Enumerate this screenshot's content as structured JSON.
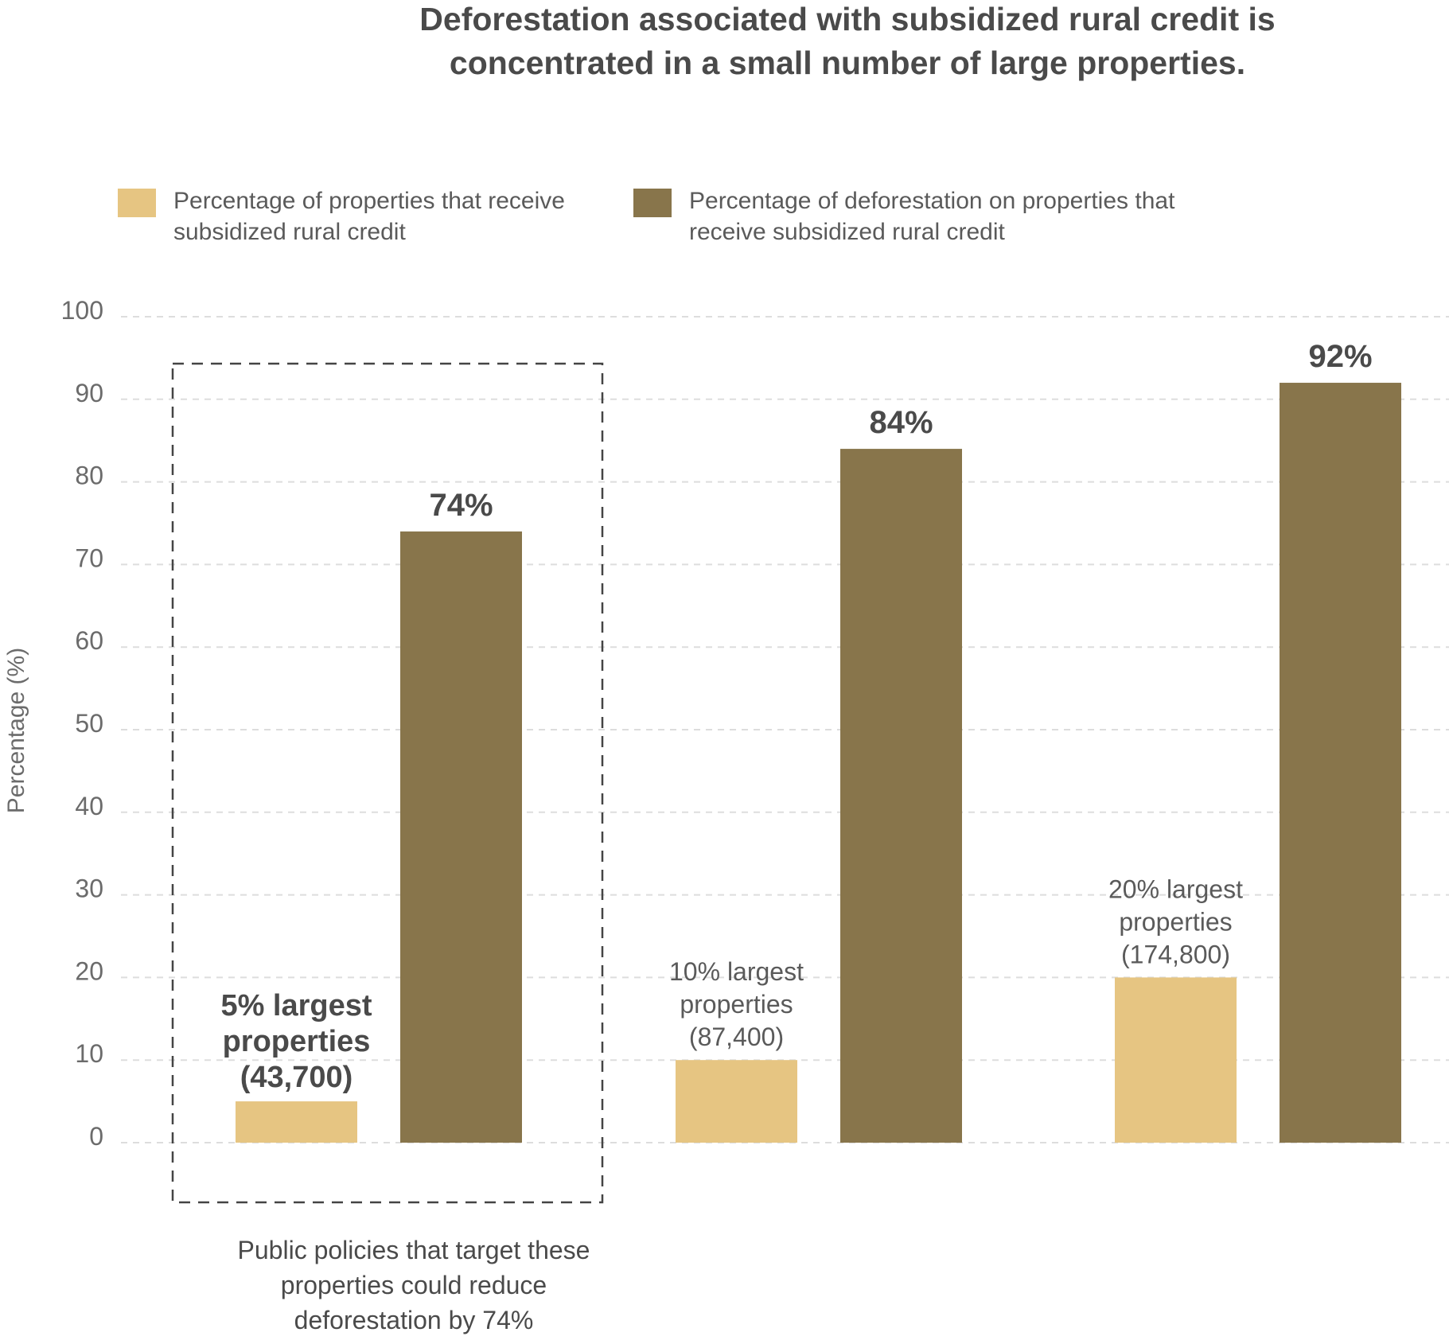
{
  "chart_data": {
    "type": "bar",
    "title": [
      "Deforestation associated with subsidized rural credit is",
      "concentrated in a small number of large properties."
    ],
    "ylabel": "Percentage (%)",
    "ylim": [
      0,
      100
    ],
    "yticks": [
      "0",
      "10",
      "20",
      "30",
      "40",
      "50",
      "60",
      "70",
      "80",
      "90",
      "100"
    ],
    "grid": true,
    "legend_position": "top-left",
    "colors": {
      "properties": "#e6c582",
      "deforestation": "#88754b"
    },
    "legend": [
      [
        "Percentage of properties that receive",
        "subsidized rural credit"
      ],
      [
        "Percentage of deforestation on properties that",
        "receive subsidized rural credit"
      ]
    ],
    "groups": [
      {
        "label": [
          "5% largest",
          "properties",
          "(43,700)"
        ],
        "properties": 5,
        "deforestation": 74,
        "deforestation_label": "74%",
        "highlight": true
      },
      {
        "label": [
          "10% largest",
          "properties",
          "(87,400)"
        ],
        "properties": 10,
        "deforestation": 84,
        "deforestation_label": "84%",
        "highlight": false
      },
      {
        "label": [
          "20% largest",
          "properties",
          "(174,800)"
        ],
        "properties": 20,
        "deforestation": 92,
        "deforestation_label": "92%",
        "highlight": false
      }
    ],
    "annotation": [
      "Public policies that target these",
      "properties could reduce",
      "deforestation by 74%"
    ]
  }
}
